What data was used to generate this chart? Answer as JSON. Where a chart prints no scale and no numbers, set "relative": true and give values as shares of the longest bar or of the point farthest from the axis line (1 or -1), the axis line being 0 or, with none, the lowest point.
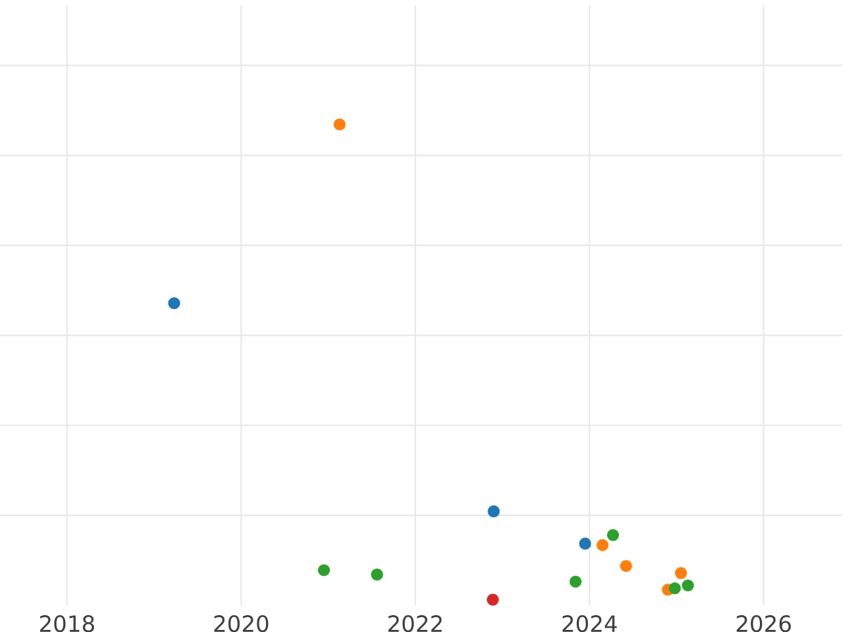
{
  "chart_data": {
    "type": "scatter",
    "relative": true,
    "marker": "circle",
    "grid": true,
    "xlim": [
      2017.23,
      2026.9
    ],
    "xticks": [
      2018,
      2020,
      2022,
      2024,
      2026
    ],
    "series": [
      {
        "color": "#1f77b4",
        "x": [
          2019.23,
          2022.9,
          2023.95
        ],
        "values": [
          0.624,
          0.186,
          0.118
        ]
      },
      {
        "color": "#ff7f0e",
        "x": [
          2021.13,
          2024.15,
          2024.42,
          2025.05,
          2024.9
        ],
        "values": [
          1.0,
          0.115,
          0.071,
          0.056,
          0.021
        ]
      },
      {
        "color": "#2ca02c",
        "x": [
          2020.95,
          2021.56,
          2024.27,
          2023.84,
          2024.98,
          2025.13
        ],
        "values": [
          0.062,
          0.053,
          0.136,
          0.038,
          0.024,
          0.03
        ]
      },
      {
        "color": "#d62728",
        "x": [
          2022.89
        ],
        "values": [
          0
        ]
      }
    ]
  }
}
